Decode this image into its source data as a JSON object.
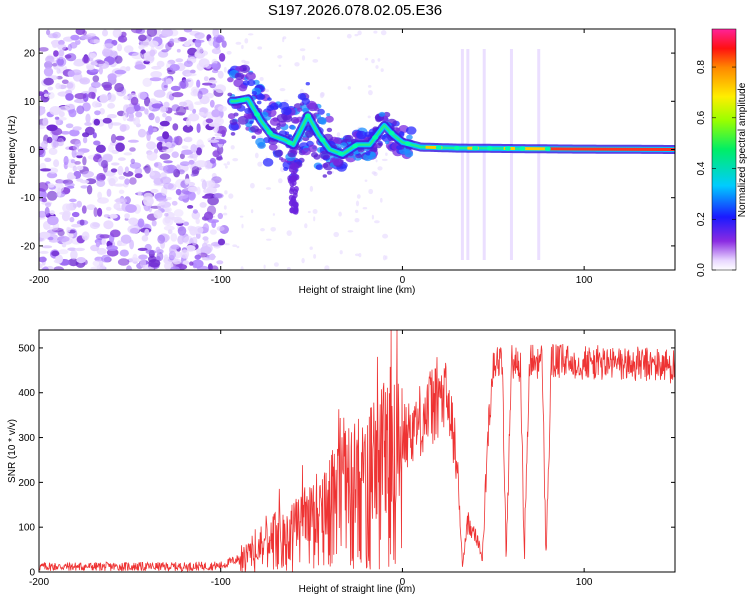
{
  "title": "S197.2026.078.02.05.E36",
  "chart_data": [
    {
      "type": "heatmap",
      "title": "S197.2026.078.02.05.E36",
      "xlabel": "Height of straight line (km)",
      "ylabel": "Frequency (Hz)",
      "xlim": [
        -200,
        150
      ],
      "ylim": [
        -25,
        25
      ],
      "xticks": [
        -200,
        -100,
        0,
        100
      ],
      "xtick_labels": [
        "-200",
        "-100",
        "0",
        "100"
      ],
      "yticks": [
        20,
        10,
        0,
        -10,
        -20
      ],
      "ytick_labels": [
        "20",
        "10",
        "0",
        "-10",
        "-20"
      ],
      "colorbar": {
        "label": "Normalized spectral amplitude",
        "range": [
          0,
          0.95
        ],
        "ticks": [
          0.0,
          0.2,
          0.4,
          0.6,
          0.8
        ],
        "tick_labels": [
          "0.0",
          "0.2",
          "0.4",
          "0.6",
          "0.8"
        ],
        "colormap": "rainbow (white-violet-blue-cyan-green-yellow-red-magenta)"
      },
      "ridge": [
        {
          "x": -92,
          "y": 10
        },
        {
          "x": -85,
          "y": 10.5
        },
        {
          "x": -78,
          "y": 6
        },
        {
          "x": -72,
          "y": 3
        },
        {
          "x": -65,
          "y": 2
        },
        {
          "x": -60,
          "y": 1
        },
        {
          "x": -52,
          "y": 7
        },
        {
          "x": -46,
          "y": 3
        },
        {
          "x": -40,
          "y": 0
        },
        {
          "x": -33,
          "y": -1
        },
        {
          "x": -25,
          "y": 1
        },
        {
          "x": -18,
          "y": 1
        },
        {
          "x": -10,
          "y": 5
        },
        {
          "x": -5,
          "y": 3
        },
        {
          "x": 0,
          "y": 1.5
        },
        {
          "x": 10,
          "y": 0.5
        },
        {
          "x": 30,
          "y": 0.3
        },
        {
          "x": 60,
          "y": 0.2
        },
        {
          "x": 90,
          "y": 0.1
        },
        {
          "x": 150,
          "y": 0
        }
      ]
    },
    {
      "type": "line",
      "xlabel": "Height of straight line (km)",
      "ylabel": "SNR (10 * v/v)",
      "xlim": [
        -200,
        150
      ],
      "ylim": [
        0,
        540
      ],
      "xticks": [
        -200,
        -100,
        0,
        100
      ],
      "xtick_labels": [
        "-200",
        "-100",
        "0",
        "100"
      ],
      "yticks": [
        0,
        100,
        200,
        300,
        400,
        500
      ],
      "ytick_labels": [
        "0",
        "100",
        "200",
        "300",
        "400",
        "500"
      ],
      "color": "#ee3333",
      "envelope": [
        {
          "x": -200,
          "y": 12
        },
        {
          "x": -120,
          "y": 12
        },
        {
          "x": -100,
          "y": 14
        },
        {
          "x": -90,
          "y": 30
        },
        {
          "x": -80,
          "y": 60
        },
        {
          "x": -70,
          "y": 90
        },
        {
          "x": -60,
          "y": 110
        },
        {
          "x": -50,
          "y": 130
        },
        {
          "x": -40,
          "y": 170
        },
        {
          "x": -30,
          "y": 210
        },
        {
          "x": -20,
          "y": 240
        },
        {
          "x": -10,
          "y": 270
        },
        {
          "x": 0,
          "y": 300
        },
        {
          "x": 10,
          "y": 340
        },
        {
          "x": 20,
          "y": 390
        },
        {
          "x": 25,
          "y": 380
        },
        {
          "x": 30,
          "y": 250
        },
        {
          "x": 33,
          "y": 15
        },
        {
          "x": 36,
          "y": 110
        },
        {
          "x": 40,
          "y": 90
        },
        {
          "x": 44,
          "y": 30
        },
        {
          "x": 47,
          "y": 300
        },
        {
          "x": 50,
          "y": 470
        },
        {
          "x": 55,
          "y": 470
        },
        {
          "x": 57,
          "y": 25
        },
        {
          "x": 60,
          "y": 470
        },
        {
          "x": 65,
          "y": 460
        },
        {
          "x": 67,
          "y": 30
        },
        {
          "x": 70,
          "y": 470
        },
        {
          "x": 77,
          "y": 470
        },
        {
          "x": 79,
          "y": 30
        },
        {
          "x": 82,
          "y": 470
        },
        {
          "x": 150,
          "y": 460
        }
      ]
    }
  ]
}
